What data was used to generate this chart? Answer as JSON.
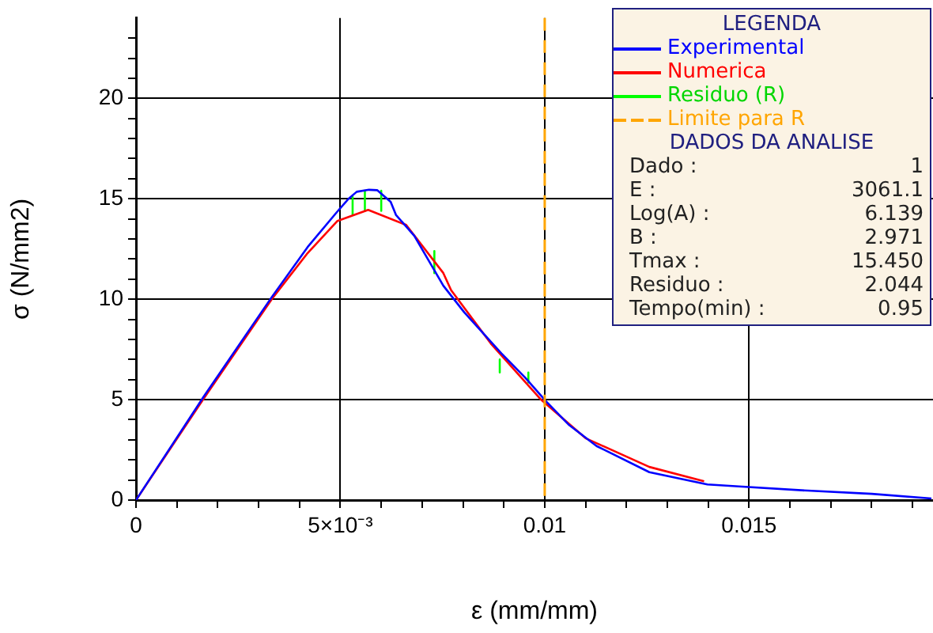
{
  "chart_data": {
    "type": "line",
    "xlabel": "ε (mm/mm)",
    "ylabel": "σ (N/mm2)",
    "legend_title": "LEGENDA",
    "legend": "top right",
    "grid": true,
    "marker": "none",
    "xlim": [
      0,
      0.0195
    ],
    "ylim": [
      0,
      24
    ],
    "xticks": [
      0,
      {
        "value": 0.001,
        "label": null
      },
      {
        "value": 0.002,
        "label": null
      },
      {
        "value": 0.003,
        "label": null
      },
      {
        "value": 0.004,
        "label": null
      },
      {
        "value": 0.005,
        "label": "5×10⁻³"
      },
      {
        "value": 0.006,
        "label": null
      },
      {
        "value": 0.007,
        "label": null
      },
      {
        "value": 0.008,
        "label": null
      },
      {
        "value": 0.009,
        "label": null
      },
      0.01,
      {
        "value": 0.011,
        "label": null
      },
      {
        "value": 0.012,
        "label": null
      },
      {
        "value": 0.013,
        "label": null
      },
      {
        "value": 0.014,
        "label": null
      },
      0.015,
      {
        "value": 0.016,
        "label": null
      },
      {
        "value": 0.017,
        "label": null
      },
      {
        "value": 0.018,
        "label": null
      },
      {
        "value": 0.019,
        "label": null
      }
    ],
    "yticks": [
      0,
      {
        "value": 1,
        "label": null
      },
      {
        "value": 2,
        "label": null
      },
      {
        "value": 3,
        "label": null
      },
      {
        "value": 4,
        "label": null
      },
      5,
      {
        "value": 6,
        "label": null
      },
      {
        "value": 7,
        "label": null
      },
      {
        "value": 8,
        "label": null
      },
      {
        "value": 9,
        "label": null
      },
      10,
      {
        "value": 11,
        "label": null
      },
      {
        "value": 12,
        "label": null
      },
      {
        "value": 13,
        "label": null
      },
      {
        "value": 14,
        "label": null
      },
      15,
      {
        "value": 16,
        "label": null
      },
      {
        "value": 17,
        "label": null
      },
      {
        "value": 18,
        "label": null
      },
      {
        "value": 19,
        "label": null
      },
      20,
      {
        "value": 21,
        "label": null
      },
      {
        "value": 22,
        "label": null
      },
      {
        "value": 23,
        "label": null
      }
    ],
    "series": [
      {
        "name": "Experimental",
        "color": "#0000ff",
        "x": [
          0,
          0.00164,
          0.00332,
          0.0042,
          0.00492,
          0.0052,
          0.0054,
          0.0057,
          0.0059,
          0.00623,
          0.00636,
          0.00681,
          0.00752,
          0.00803,
          0.00894,
          0.00952,
          0.01004,
          0.0106,
          0.01127,
          0.01256,
          0.01398,
          0.01475,
          0.01643,
          0.018,
          0.01946
        ],
        "values": [
          0,
          5.1,
          10.1,
          12.6,
          14.35,
          15.0,
          15.35,
          15.45,
          15.43,
          14.85,
          14.2,
          13.15,
          10.67,
          9.35,
          7.3,
          6.1,
          4.9,
          3.73,
          2.69,
          1.39,
          0.78,
          0.68,
          0.47,
          0.31,
          0.08
        ]
      },
      {
        "name": "Numerica",
        "color": "#ff0000",
        "x": [
          0,
          0.00164,
          0.00332,
          0.0042,
          0.00493,
          0.00568,
          0.00661,
          0.00752,
          0.00771,
          0.00868,
          0.00991,
          0.011,
          0.01256,
          0.0139
        ],
        "values": [
          0,
          5.0,
          10.0,
          12.3,
          13.9,
          14.45,
          13.7,
          11.3,
          10.45,
          7.8,
          5.0,
          3.08,
          1.65,
          0.94
        ]
      },
      {
        "name": "Residuo (R)",
        "color": "#00ff00",
        "x": [
          0.0053,
          0.0053,
          null,
          0.0056,
          0.0056,
          null,
          0.006,
          0.006,
          null,
          0.0073,
          0.0073,
          null,
          0.0089,
          0.0089,
          null,
          0.0096,
          0.0096
        ],
        "values": [
          15.1,
          14.2,
          null,
          15.4,
          14.4,
          null,
          15.4,
          14.4,
          null,
          12.4,
          11.3,
          null,
          7.0,
          6.35,
          null,
          6.35,
          5.85
        ]
      }
    ],
    "ref_lines": [
      {
        "axis": "x",
        "value": 0.01,
        "label": "Limite para R",
        "color": "#ffa500",
        "line_style": "dashed"
      }
    ],
    "annotations": [
      "DADOS DA ANALISE",
      "Dado : 1",
      "E : 3061.1",
      "Log(A) : 6.139",
      "B : 2.971",
      "Tmax : 15.450",
      "Residuo : 2.044",
      "Tempo(min) : 0.95"
    ]
  }
}
